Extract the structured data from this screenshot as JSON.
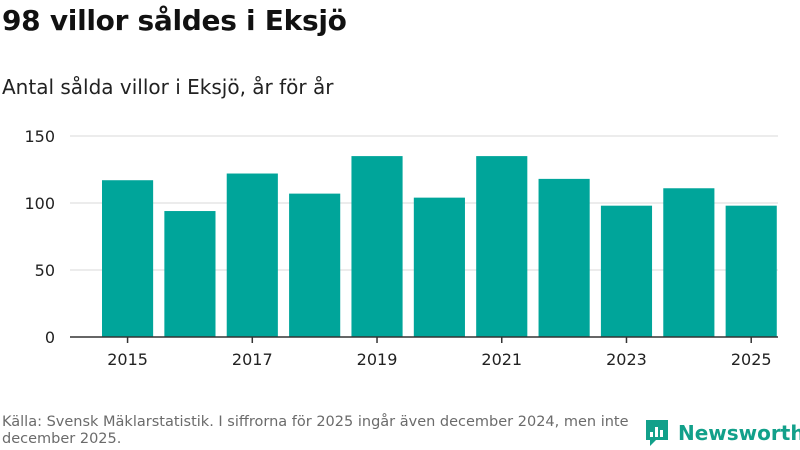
{
  "title": "98 villor såldes i Eksjö",
  "subtitle": "Antal sålda villor i Eksjö, år för år",
  "footer": "Källa: Svensk Mäklarstatistik. I siffrorna för 2025 ingår även december 2024, men inte december 2025.",
  "brand": {
    "name": "Newsworthy",
    "color": "#12a08a"
  },
  "colors": {
    "bar": "#00a59a",
    "grid": "#d9d9d9",
    "axis": "#333333",
    "tick_text": "#222222"
  },
  "chart_data": {
    "type": "bar",
    "title": "98 villor såldes i Eksjö",
    "subtitle": "Antal sålda villor i Eksjö, år för år",
    "xlabel": "",
    "ylabel": "",
    "categories": [
      "2015",
      "2016",
      "2017",
      "2018",
      "2019",
      "2020",
      "2021",
      "2022",
      "2023",
      "2024",
      "2025"
    ],
    "values": [
      117,
      94,
      122,
      107,
      135,
      104,
      135,
      118,
      98,
      111,
      98
    ],
    "ylim": [
      0,
      150
    ],
    "yticks": [
      "0",
      "50",
      "100",
      "150"
    ],
    "xtick_labels": [
      "2015",
      "2017",
      "2019",
      "2021",
      "2023",
      "2025"
    ],
    "grid": true
  }
}
